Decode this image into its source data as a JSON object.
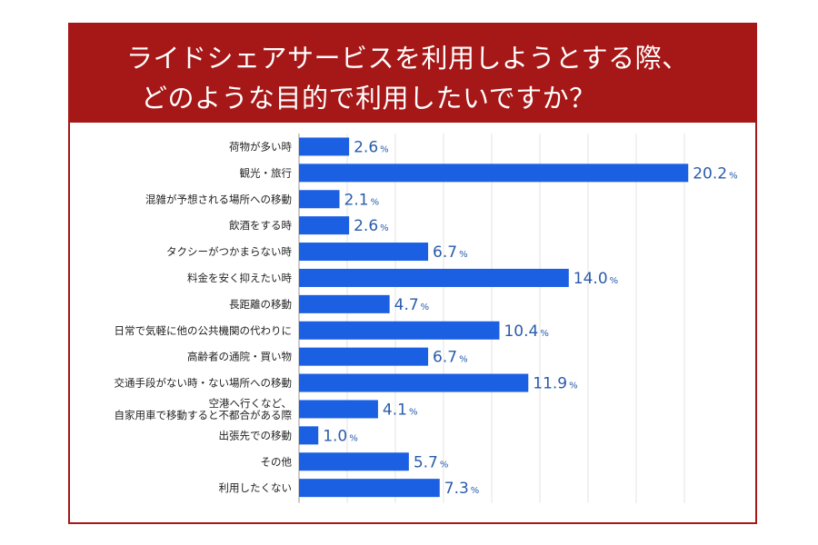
{
  "chart_data": {
    "type": "bar",
    "orientation": "horizontal",
    "title": "ライドシェアサービスを利用しようとする際、どのような目的で利用したいですか？",
    "title_lines": [
      "ライドシェアサービスを利用しようとする際、",
      "どのような目的で利用したいですか？"
    ],
    "categories": [
      "荷物が多い時",
      "観光・旅行",
      "混雑が予想される場所への移動",
      "飲酒をする時",
      "タクシーがつかまらない時",
      "料金を安く抑えたい時",
      "長距離の移動",
      "日常で気軽に他の公共機関の代わりに",
      "高齢者の通院・買い物",
      "交通手段がない時・ない場所への移動",
      "空港へ行くなど、\n自家用車で移動すると不都合がある際",
      "出張先での移動",
      "その他",
      "利用したくない"
    ],
    "values": [
      2.6,
      20.2,
      2.1,
      2.6,
      6.7,
      14.0,
      4.7,
      10.4,
      6.7,
      11.9,
      4.1,
      1.0,
      5.7,
      7.3
    ],
    "value_labels": [
      "2.6",
      "20.2",
      "2.1",
      "2.6",
      "6.7",
      "14.0",
      "4.7",
      "10.4",
      "6.7",
      "11.9",
      "4.1",
      "1.0",
      "5.7",
      "7.3"
    ],
    "unit": "%",
    "xlim": [
      0,
      20
    ],
    "grid_step": 2.5,
    "grid": true,
    "xlabel": "",
    "ylabel": "",
    "colors": {
      "bar": "#1b5fe3",
      "value_text": "#2a5cab",
      "frame": "#a61717",
      "title_text": "#ffffff",
      "grid": "#e3e3e3"
    }
  }
}
